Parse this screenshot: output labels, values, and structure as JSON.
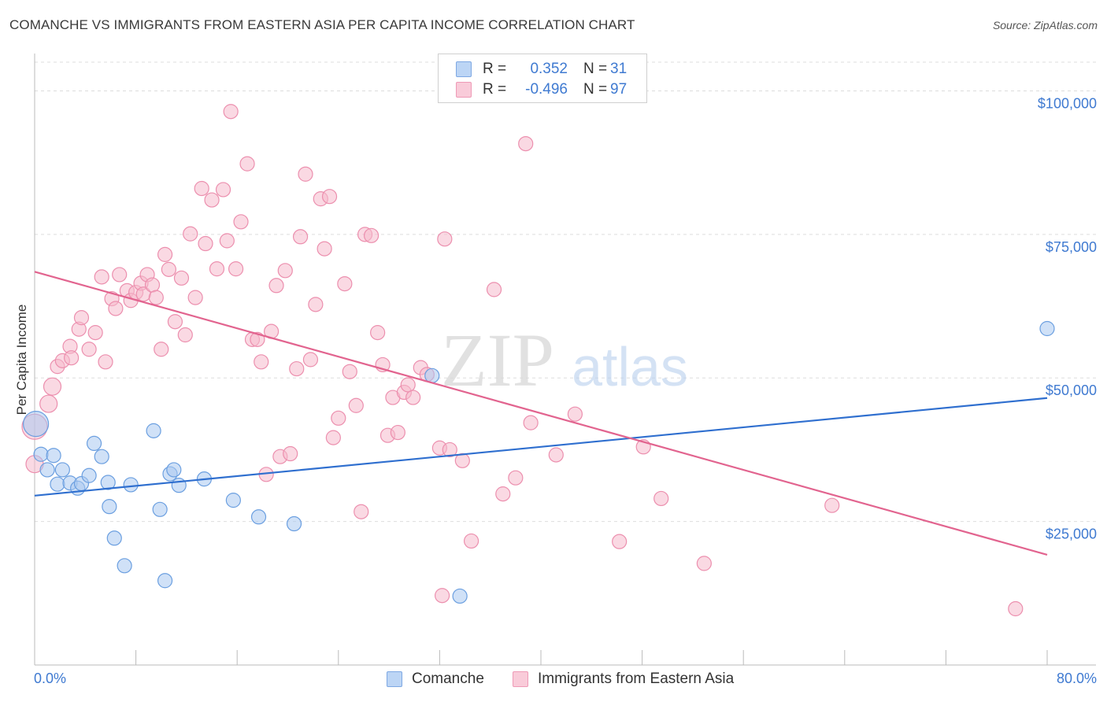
{
  "header": {
    "title": "COMANCHE VS IMMIGRANTS FROM EASTERN ASIA PER CAPITA INCOME CORRELATION CHART",
    "source": "Source: ZipAtlas.com"
  },
  "stats_legend": {
    "rows": [
      {
        "r_label": "R =",
        "r_value": "0.352",
        "n_label": "N =",
        "n_value": "31"
      },
      {
        "r_label": "R =",
        "r_value": "-0.496",
        "n_label": "N =",
        "n_value": "97"
      }
    ]
  },
  "watermark": {
    "zip": "ZIP",
    "atlas": "atlas"
  },
  "colors": {
    "comanche_fill": "#a9c8f0",
    "comanche_stroke": "#6b9fe0",
    "comanche_line": "#2f6fcf",
    "asia_fill": "#f5b9cc",
    "asia_stroke": "#ec8fae",
    "asia_line": "#e2648f",
    "axis_text": "#3f7ad1",
    "grid": "#dddddd"
  },
  "chart_data": {
    "type": "scatter",
    "title": "COMANCHE VS IMMIGRANTS FROM EASTERN ASIA PER CAPITA INCOME CORRELATION CHART",
    "xlabel": "",
    "ylabel": "Per Capita Income",
    "xlim": [
      0,
      80
    ],
    "ylim": [
      0,
      105000
    ],
    "x_tick_labels": [
      "0.0%",
      "80.0%"
    ],
    "y_ticks": [
      25000,
      50000,
      75000,
      100000
    ],
    "y_tick_labels": [
      "$25,000",
      "$50,000",
      "$75,000",
      "$100,000"
    ],
    "grid": true,
    "legend_position": "bottom",
    "series": [
      {
        "name": "Comanche",
        "r": 0.352,
        "n": 31,
        "trend": {
          "x": [
            0,
            80
          ],
          "y": [
            29500,
            46500
          ]
        },
        "points": [
          [
            0.1,
            42000,
            16
          ],
          [
            0.5,
            36700,
            9
          ],
          [
            1.0,
            34000,
            9
          ],
          [
            1.5,
            36500,
            9
          ],
          [
            2.2,
            34000,
            9
          ],
          [
            1.8,
            31500,
            9
          ],
          [
            2.8,
            31700,
            9
          ],
          [
            3.4,
            30800,
            9
          ],
          [
            3.7,
            31600,
            9
          ],
          [
            4.3,
            33000,
            9
          ],
          [
            4.7,
            38600,
            9
          ],
          [
            5.3,
            36300,
            9
          ],
          [
            5.8,
            31800,
            9
          ],
          [
            5.9,
            27600,
            9
          ],
          [
            6.3,
            22100,
            9
          ],
          [
            7.1,
            17300,
            9
          ],
          [
            7.6,
            31400,
            9
          ],
          [
            9.4,
            40800,
            9
          ],
          [
            9.9,
            27100,
            9
          ],
          [
            10.3,
            14700,
            9
          ],
          [
            10.7,
            33300,
            9
          ],
          [
            11.0,
            34000,
            9
          ],
          [
            11.4,
            31300,
            9
          ],
          [
            13.4,
            32400,
            9
          ],
          [
            15.7,
            28700,
            9
          ],
          [
            17.7,
            25800,
            9
          ],
          [
            20.5,
            24600,
            9
          ],
          [
            31.4,
            50400,
            9
          ],
          [
            33.6,
            12000,
            9
          ],
          [
            80.0,
            58600,
            9
          ]
        ]
      },
      {
        "name": "Immigrants from Eastern Asia",
        "r": -0.496,
        "n": 97,
        "trend": {
          "x": [
            0,
            80
          ],
          "y": [
            68500,
            19200
          ]
        },
        "points": [
          [
            0.0,
            35000,
            11
          ],
          [
            0.0,
            41500,
            16
          ],
          [
            1.1,
            45500,
            11
          ],
          [
            1.4,
            48500,
            11
          ],
          [
            1.8,
            52000,
            9
          ],
          [
            2.2,
            53000,
            9
          ],
          [
            2.8,
            55500,
            9
          ],
          [
            2.9,
            53500,
            9
          ],
          [
            3.5,
            58500,
            9
          ],
          [
            3.7,
            60500,
            9
          ],
          [
            4.3,
            55000,
            9
          ],
          [
            4.8,
            57900,
            9
          ],
          [
            5.3,
            67600,
            9
          ],
          [
            5.6,
            52800,
            9
          ],
          [
            6.1,
            63800,
            9
          ],
          [
            6.4,
            62100,
            9
          ],
          [
            6.7,
            68000,
            9
          ],
          [
            7.3,
            65200,
            9
          ],
          [
            7.6,
            63500,
            9
          ],
          [
            8.0,
            64900,
            9
          ],
          [
            8.4,
            66500,
            9
          ],
          [
            8.6,
            64600,
            9
          ],
          [
            8.9,
            68000,
            9
          ],
          [
            9.3,
            66200,
            9
          ],
          [
            9.6,
            64000,
            9
          ],
          [
            10.0,
            55000,
            9
          ],
          [
            10.3,
            71500,
            9
          ],
          [
            10.6,
            68900,
            9
          ],
          [
            11.1,
            59800,
            9
          ],
          [
            11.6,
            67400,
            9
          ],
          [
            11.9,
            57500,
            9
          ],
          [
            12.3,
            75100,
            9
          ],
          [
            12.7,
            64000,
            9
          ],
          [
            13.2,
            83000,
            9
          ],
          [
            13.5,
            73400,
            9
          ],
          [
            14.0,
            81000,
            9
          ],
          [
            14.4,
            69000,
            9
          ],
          [
            14.9,
            82800,
            9
          ],
          [
            15.2,
            73900,
            9
          ],
          [
            15.5,
            96400,
            9
          ],
          [
            15.9,
            69000,
            9
          ],
          [
            16.3,
            77200,
            9
          ],
          [
            16.8,
            87300,
            9
          ],
          [
            17.2,
            56700,
            9
          ],
          [
            17.6,
            56700,
            9
          ],
          [
            17.9,
            52800,
            9
          ],
          [
            18.3,
            33200,
            9
          ],
          [
            18.7,
            58100,
            9
          ],
          [
            19.1,
            66100,
            9
          ],
          [
            19.4,
            36300,
            9
          ],
          [
            19.8,
            68700,
            9
          ],
          [
            20.2,
            36800,
            9
          ],
          [
            20.7,
            51600,
            9
          ],
          [
            21.0,
            74600,
            9
          ],
          [
            21.4,
            85500,
            9
          ],
          [
            21.8,
            53200,
            9
          ],
          [
            22.2,
            62800,
            9
          ],
          [
            22.6,
            81200,
            9
          ],
          [
            22.9,
            72500,
            9
          ],
          [
            23.3,
            81600,
            9
          ],
          [
            23.6,
            39600,
            9
          ],
          [
            24.0,
            43000,
            9
          ],
          [
            24.5,
            66400,
            9
          ],
          [
            24.9,
            51100,
            9
          ],
          [
            25.4,
            45200,
            9
          ],
          [
            25.8,
            26700,
            9
          ],
          [
            26.1,
            75000,
            9
          ],
          [
            26.6,
            74800,
            9
          ],
          [
            27.1,
            57900,
            9
          ],
          [
            27.5,
            52300,
            9
          ],
          [
            27.9,
            40000,
            9
          ],
          [
            28.3,
            46600,
            9
          ],
          [
            28.7,
            40500,
            9
          ],
          [
            29.2,
            47500,
            9
          ],
          [
            29.5,
            48800,
            9
          ],
          [
            29.9,
            46600,
            9
          ],
          [
            30.5,
            51800,
            9
          ],
          [
            31.0,
            50600,
            9
          ],
          [
            32.0,
            37800,
            9
          ],
          [
            32.2,
            12100,
            9
          ],
          [
            32.4,
            74200,
            9
          ],
          [
            32.8,
            37500,
            9
          ],
          [
            33.8,
            35600,
            9
          ],
          [
            34.5,
            21600,
            9
          ],
          [
            36.3,
            65400,
            9
          ],
          [
            37.0,
            29800,
            9
          ],
          [
            38.0,
            32600,
            9
          ],
          [
            38.8,
            90800,
            9
          ],
          [
            39.2,
            42200,
            9
          ],
          [
            41.2,
            36600,
            9
          ],
          [
            42.7,
            43700,
            9
          ],
          [
            46.2,
            21500,
            9
          ],
          [
            48.1,
            38000,
            9
          ],
          [
            49.5,
            29000,
            9
          ],
          [
            52.9,
            17700,
            9
          ],
          [
            63.0,
            27800,
            9
          ],
          [
            77.5,
            9800,
            9
          ]
        ]
      }
    ]
  },
  "bottom_legend": {
    "items": [
      {
        "label": "Comanche"
      },
      {
        "label": "Immigrants from Eastern Asia"
      }
    ]
  }
}
